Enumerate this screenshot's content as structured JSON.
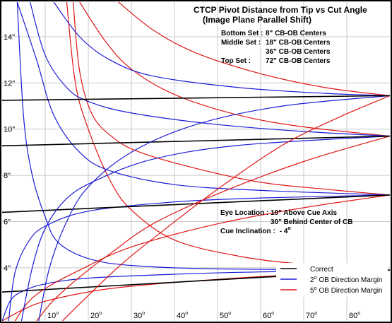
{
  "chart_data": {
    "type": "line",
    "title": "CTCP Pivot Distance from Tip vs Cut Angle",
    "subtitle": "(Image Plane Parallel Shift)",
    "xlabel": "",
    "ylabel": "",
    "xlim": [
      0,
      90
    ],
    "ylim": [
      1.7,
      15.5
    ],
    "x_ticks": [
      "10°",
      "20°",
      "30°",
      "40°",
      "50°",
      "60°",
      "70°",
      "80°"
    ],
    "x_tick_values": [
      10,
      20,
      30,
      40,
      50,
      60,
      70,
      80
    ],
    "y_ticks": [
      "4\"",
      "6\"",
      "8\"",
      "10\"",
      "12\"",
      "14\""
    ],
    "y_tick_values": [
      4,
      6,
      8,
      10,
      12,
      14
    ],
    "grid": true,
    "sets": {
      "bottom": {
        "label": "Bottom Set :",
        "value": "8\" CB-OB Centers"
      },
      "middle": {
        "label": "Middle Set :",
        "value": "18\" CB-OB Centers"
      },
      "middle2": {
        "value": "36\" CB-OB Centers"
      },
      "top": {
        "label": "Top Set :",
        "value": "72\" CB-OB Centers"
      }
    },
    "notes": {
      "eye_label": "Eye Location :",
      "eye_line1": "10\" Above Cue Axis",
      "eye_line2": "30\" Behind Center of CB",
      "incl_label": "Cue Inclination :",
      "incl_value": "- 4",
      "incl_sup": "o"
    },
    "legend_position": "bottom-right",
    "legend": [
      {
        "label": "Correct",
        "sup": "",
        "color": "#000000"
      },
      {
        "label": "OB Direction Margin",
        "sup": "o",
        "prefix": "2",
        "color": "#1a1ad6"
      },
      {
        "label": "OB Direction Margin",
        "sup": "o",
        "prefix": "5",
        "color": "#e01515"
      }
    ],
    "groups": [
      {
        "name": "8\" CB-OB Centers",
        "converge": [
          90,
          3.9
        ],
        "correct": [
          [
            0,
            2.95
          ],
          [
            90,
            3.9
          ]
        ],
        "blue": [
          [
            [
              0,
              1.7
            ],
            [
              2,
              2.6
            ],
            [
              5,
              3.0
            ],
            [
              10,
              3.3
            ],
            [
              20,
              3.55
            ],
            [
              40,
              3.72
            ],
            [
              60,
              3.82
            ],
            [
              90,
              3.9
            ]
          ],
          [
            [
              3.5,
              15.5
            ],
            [
              5,
              10.5
            ],
            [
              7,
              8.0
            ],
            [
              10,
              6.2
            ],
            [
              13,
              5.1
            ],
            [
              20,
              4.4
            ],
            [
              30,
              4.1
            ],
            [
              50,
              3.95
            ],
            [
              90,
              3.9
            ]
          ]
        ],
        "red": [
          [
            [
              0,
              1.7
            ],
            [
              5,
              2.2
            ],
            [
              10,
              2.55
            ],
            [
              20,
              2.95
            ],
            [
              30,
              3.2
            ],
            [
              50,
              3.5
            ],
            [
              70,
              3.72
            ],
            [
              90,
              3.9
            ]
          ],
          [
            [
              15,
              15.5
            ],
            [
              17,
              12.0
            ],
            [
              20,
              10.0
            ],
            [
              25,
              7.8
            ],
            [
              30,
              6.5
            ],
            [
              40,
              5.2
            ],
            [
              55,
              4.5
            ],
            [
              70,
              4.15
            ],
            [
              90,
              3.9
            ]
          ]
        ]
      },
      {
        "name": "18\" CB-OB Centers",
        "converge": [
          90,
          7.15
        ],
        "correct": [
          [
            0,
            6.4
          ],
          [
            90,
            7.15
          ]
        ],
        "blue": [
          [
            [
              1.5,
              1.7
            ],
            [
              3,
              3.8
            ],
            [
              6,
              5.1
            ],
            [
              10,
              5.8
            ],
            [
              20,
              6.45
            ],
            [
              40,
              6.85
            ],
            [
              60,
              7.02
            ],
            [
              90,
              7.15
            ]
          ],
          [
            [
              3.5,
              15.5
            ],
            [
              8,
              13.0
            ],
            [
              12,
              10.6
            ],
            [
              18,
              9.0
            ],
            [
              25,
              8.2
            ],
            [
              40,
              7.6
            ],
            [
              60,
              7.35
            ],
            [
              90,
              7.15
            ]
          ]
        ],
        "red": [
          [
            [
              3,
              1.7
            ],
            [
              6,
              2.5
            ],
            [
              10,
              3.1
            ],
            [
              18,
              3.9
            ],
            [
              30,
              4.9
            ],
            [
              50,
              5.9
            ],
            [
              70,
              6.6
            ],
            [
              90,
              7.15
            ]
          ],
          [
            [
              16.5,
              15.5
            ],
            [
              18,
              12.5
            ],
            [
              21,
              10.6
            ],
            [
              26,
              9.6
            ],
            [
              32,
              9.0
            ],
            [
              45,
              8.3
            ],
            [
              60,
              7.7
            ],
            [
              75,
              7.4
            ],
            [
              90,
              7.15
            ]
          ]
        ]
      },
      {
        "name": "36\" CB-OB Centers",
        "converge": [
          90,
          9.7
        ],
        "correct": [
          [
            0,
            9.28
          ],
          [
            90,
            9.7
          ]
        ],
        "blue": [
          [
            [
              4.5,
              1.7
            ],
            [
              7,
              4.0
            ],
            [
              10,
              5.7
            ],
            [
              15,
              7.0
            ],
            [
              22,
              7.8
            ],
            [
              35,
              8.7
            ],
            [
              55,
              9.3
            ],
            [
              90,
              9.7
            ]
          ],
          [
            [
              6.5,
              15.5
            ],
            [
              10,
              13.2
            ],
            [
              15,
              11.8
            ],
            [
              20,
              11.2
            ],
            [
              30,
              10.7
            ],
            [
              50,
              10.2
            ],
            [
              70,
              9.9
            ],
            [
              90,
              9.7
            ]
          ]
        ],
        "red": [
          [
            [
              8,
              1.7
            ],
            [
              12,
              2.6
            ],
            [
              18,
              3.6
            ],
            [
              25,
              4.6
            ],
            [
              35,
              5.9
            ],
            [
              50,
              7.2
            ],
            [
              70,
              8.6
            ],
            [
              90,
              9.7
            ]
          ],
          [
            [
              18,
              15.5
            ],
            [
              24,
              13.8
            ],
            [
              30,
              12.6
            ],
            [
              40,
              11.5
            ],
            [
              55,
              10.6
            ],
            [
              70,
              10.1
            ],
            [
              90,
              9.7
            ]
          ]
        ]
      },
      {
        "name": "72\" CB-OB Centers",
        "converge": [
          90,
          11.45
        ],
        "correct": [
          [
            0,
            11.25
          ],
          [
            90,
            11.45
          ]
        ],
        "blue": [
          [
            [
              8.5,
              1.7
            ],
            [
              11,
              4.0
            ],
            [
              15,
              6.0
            ],
            [
              20,
              7.5
            ],
            [
              30,
              9.0
            ],
            [
              45,
              10.2
            ],
            [
              65,
              11.0
            ],
            [
              90,
              11.45
            ]
          ],
          [
            [
              12,
              15.5
            ],
            [
              18,
              14.0
            ],
            [
              25,
              13.0
            ],
            [
              35,
              12.3
            ],
            [
              55,
              11.8
            ],
            [
              75,
              11.55
            ],
            [
              90,
              11.45
            ]
          ]
        ],
        "red": [
          [
            [
              14,
              1.7
            ],
            [
              20,
              2.8
            ],
            [
              28,
              4.2
            ],
            [
              38,
              5.7
            ],
            [
              50,
              7.4
            ],
            [
              65,
              9.3
            ],
            [
              78,
              10.5
            ],
            [
              90,
              11.45
            ]
          ],
          [
            [
              27,
              15.5
            ],
            [
              35,
              14.3
            ],
            [
              45,
              13.3
            ],
            [
              60,
              12.4
            ],
            [
              75,
              11.8
            ],
            [
              90,
              11.45
            ]
          ]
        ]
      }
    ]
  }
}
